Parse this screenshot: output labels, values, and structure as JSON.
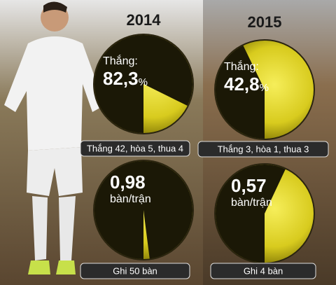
{
  "chart_data": [
    {
      "type": "pie",
      "title": "2014",
      "label": "Thắng:",
      "values": [
        82.3
      ],
      "value_labels": [
        "82,3"
      ],
      "unit": "%",
      "caption": "Thắng 42, hòa 5, thua 4",
      "ylim": [
        0,
        100
      ],
      "colors": [
        "#1b1806",
        "#ece030"
      ]
    },
    {
      "type": "pie",
      "title": "2015",
      "label": "Thắng:",
      "values": [
        42.8
      ],
      "value_labels": [
        "42,8"
      ],
      "unit": "%",
      "caption": "Thắng 3, hòa 1, thua 3",
      "ylim": [
        0,
        100
      ],
      "colors": [
        "#1b1806",
        "#ece030"
      ]
    },
    {
      "type": "pie",
      "values": [
        0.98
      ],
      "value_labels": [
        "0,98"
      ],
      "unit": "bàn/trận",
      "caption": "Ghi 50 bàn",
      "ylim": [
        0,
        1
      ],
      "colors": [
        "#1b1806",
        "#ece030"
      ]
    },
    {
      "type": "pie",
      "values": [
        0.57
      ],
      "value_labels": [
        "0,57"
      ],
      "unit": "bàn/trận",
      "caption": "Ghi 4 bàn",
      "ylim": [
        0,
        1
      ],
      "colors": [
        "#1b1806",
        "#ece030"
      ]
    }
  ]
}
